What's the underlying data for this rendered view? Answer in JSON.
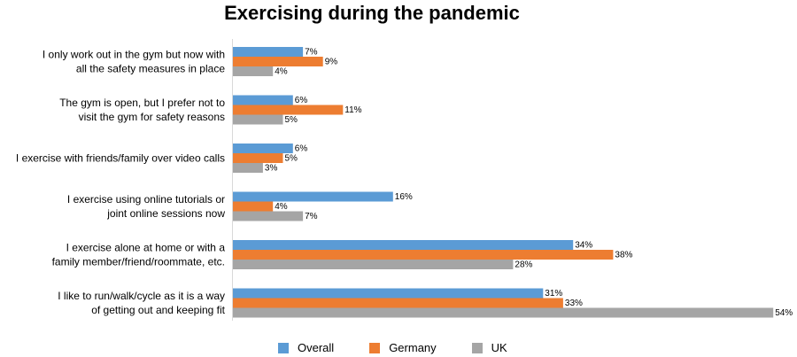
{
  "chart_data": {
    "type": "bar",
    "orientation": "horizontal",
    "title": "Exercising during the pandemic",
    "categories": [
      [
        "I only work out in the gym but now with",
        "all the safety measures in place"
      ],
      [
        "The gym is open, but I prefer not to",
        "visit the gym for safety reasons"
      ],
      [
        "I exercise with friends/family over video calls"
      ],
      [
        "I exercise using online tutorials or",
        "joint online sessions now"
      ],
      [
        "I exercise alone at home or with a",
        "family member/friend/roommate, etc."
      ],
      [
        "I like to run/walk/cycle as it is a way",
        "of getting out and keeping fit"
      ]
    ],
    "series": [
      {
        "name": "Overall",
        "color": "#5b9bd5",
        "values": [
          7,
          6,
          6,
          16,
          34,
          31
        ]
      },
      {
        "name": "Germany",
        "color": "#ed7d31",
        "values": [
          9,
          11,
          5,
          4,
          38,
          33
        ]
      },
      {
        "name": "UK",
        "color": "#a5a5a5",
        "values": [
          4,
          5,
          3,
          7,
          28,
          54
        ]
      }
    ],
    "value_suffix": "%",
    "xlim": [
      0,
      54
    ],
    "grid": false,
    "legend_position": "bottom"
  }
}
